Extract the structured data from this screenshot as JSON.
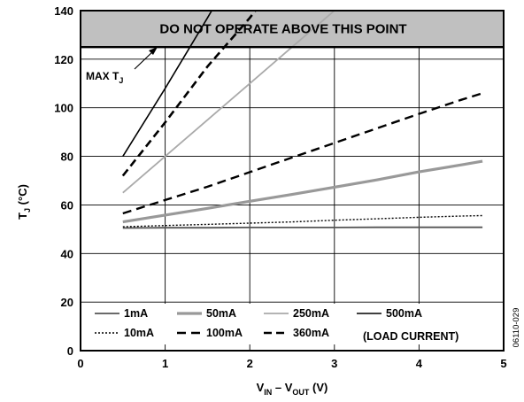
{
  "chart_data": {
    "type": "line",
    "xlabel": {
      "main": "V",
      "sub1": "IN",
      "mid": " – V",
      "sub2": "OUT",
      "unit": " (V)"
    },
    "ylabel": {
      "main": "T",
      "sub": "J",
      "unit": " (°C)"
    },
    "xlim": [
      0,
      5
    ],
    "ylim": [
      0,
      140
    ],
    "xticks": [
      "0",
      "1",
      "2",
      "3",
      "4",
      "5"
    ],
    "yticks": [
      "0",
      "20",
      "40",
      "60",
      "80",
      "100",
      "120",
      "140"
    ],
    "grid": true,
    "banner": {
      "text": "DO NOT OPERATE ABOVE THIS POINT",
      "y_from": 125,
      "y_to": 140,
      "color": "#c0c0c0"
    },
    "annotation": {
      "main": "MAX T",
      "sub": "J",
      "y": 125
    },
    "legend_note": "(LOAD CURRENT)",
    "figure_id": "06110-029",
    "series": [
      {
        "name": "1mA",
        "color": "#555555",
        "width": 1.8,
        "dash": "",
        "x": [
          0.5,
          1.0,
          1.5,
          2.0,
          2.5,
          3.0,
          3.5,
          4.0,
          4.5,
          4.75
        ],
        "y": [
          50.5,
          50.6,
          50.6,
          50.7,
          50.7,
          50.7,
          50.8,
          50.8,
          50.8,
          50.8
        ]
      },
      {
        "name": "10mA",
        "color": "#000000",
        "width": 1.4,
        "dash": "2,2",
        "x": [
          0.5,
          1.0,
          1.5,
          2.0,
          2.5,
          3.0,
          3.5,
          4.0,
          4.5,
          4.75
        ],
        "y": [
          51,
          51.5,
          52,
          52.5,
          53,
          53.7,
          54.3,
          54.9,
          55.4,
          55.6
        ]
      },
      {
        "name": "50mA",
        "color": "#999999",
        "width": 3.2,
        "dash": "",
        "x": [
          0.5,
          1.0,
          1.5,
          2.0,
          2.5,
          3.0,
          3.5,
          4.0,
          4.5,
          4.75
        ],
        "y": [
          53,
          55.8,
          58.6,
          61.5,
          64.3,
          67.3,
          70.3,
          73.6,
          76.5,
          78
        ]
      },
      {
        "name": "100mA",
        "color": "#000000",
        "width": 2.4,
        "dash": "10,6",
        "x": [
          0.5,
          1.0,
          1.5,
          2.0,
          2.5,
          3.0,
          3.5,
          4.0,
          4.5,
          4.75
        ],
        "y": [
          56.5,
          62,
          67.5,
          73.5,
          79.5,
          85.5,
          91.5,
          97.5,
          103.3,
          106
        ]
      },
      {
        "name": "250mA",
        "color": "#aaaaaa",
        "width": 1.8,
        "dash": "",
        "x": [
          0.5,
          1.0,
          1.5,
          2.0,
          2.5,
          3.0
        ],
        "y": [
          65,
          80,
          95,
          110,
          125,
          140
        ]
      },
      {
        "name": "360mA",
        "color": "#000000",
        "width": 2.6,
        "dash": "9,5",
        "x": [
          0.5,
          1.0,
          1.5,
          2.0,
          2.4
        ],
        "y": [
          72,
          94,
          117,
          137,
          155
        ]
      },
      {
        "name": "500mA",
        "color": "#000000",
        "width": 1.6,
        "dash": "",
        "x": [
          0.5,
          1.0,
          1.5,
          1.8
        ],
        "y": [
          80,
          108,
          137,
          155
        ]
      }
    ],
    "legend_rows": [
      [
        "1mA",
        "50mA",
        "250mA",
        "500mA"
      ],
      [
        "10mA",
        "100mA",
        "360mA"
      ]
    ]
  }
}
